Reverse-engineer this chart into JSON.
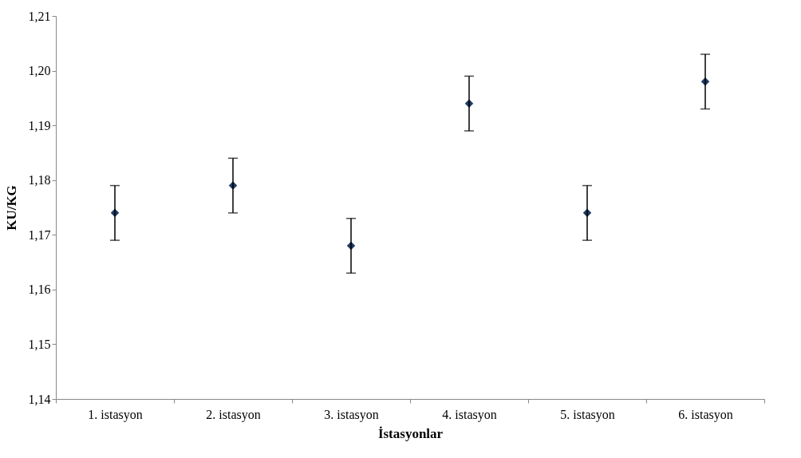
{
  "chart_data": {
    "type": "scatter",
    "xlabel": "İstasyonlar",
    "ylabel": "KU/KG",
    "categories": [
      "1. istasyon",
      "2. istasyon",
      "3. istasyon",
      "4. istasyon",
      "5. istasyon",
      "6. istasyon"
    ],
    "series": [
      {
        "color": "#1f3b63",
        "values": [
          1.174,
          1.179,
          1.168,
          1.194,
          1.174,
          1.198
        ],
        "errors": [
          0.005,
          0.005,
          0.005,
          0.005,
          0.005,
          0.005
        ]
      }
    ],
    "ylim": [
      1.14,
      1.21
    ],
    "yticks": [
      {
        "value": 1.14,
        "label": "1,14"
      },
      {
        "value": 1.15,
        "label": "1,15"
      },
      {
        "value": 1.16,
        "label": "1,16"
      },
      {
        "value": 1.17,
        "label": "1,17"
      },
      {
        "value": 1.18,
        "label": "1,18"
      },
      {
        "value": 1.19,
        "label": "1,19"
      },
      {
        "value": 1.2,
        "label": "1,20"
      },
      {
        "value": 1.21,
        "label": "1,21"
      }
    ],
    "grid": false,
    "marker": "diamond"
  }
}
